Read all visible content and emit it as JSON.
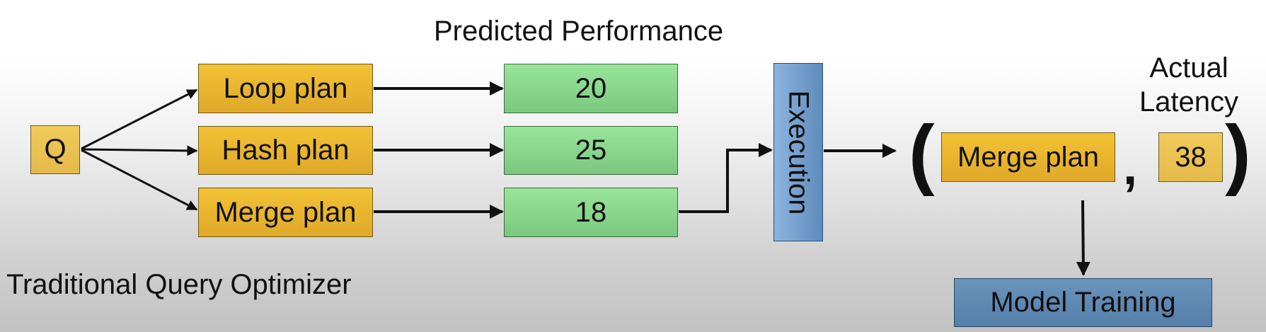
{
  "query": "Q",
  "plans": [
    "Loop plan",
    "Hash plan",
    "Merge plan"
  ],
  "predicted": {
    "title": "Predicted Performance",
    "values": [
      "20",
      "25",
      "18"
    ]
  },
  "execution": "Execution",
  "result": {
    "plan": "Merge plan",
    "comma": ",",
    "latency_value": "38",
    "latency_label_line1": "Actual",
    "latency_label_line2": "Latency",
    "open_paren": "(",
    "close_paren": ")"
  },
  "model_training": "Model Training",
  "optimizer_label": "Traditional Query Optimizer"
}
